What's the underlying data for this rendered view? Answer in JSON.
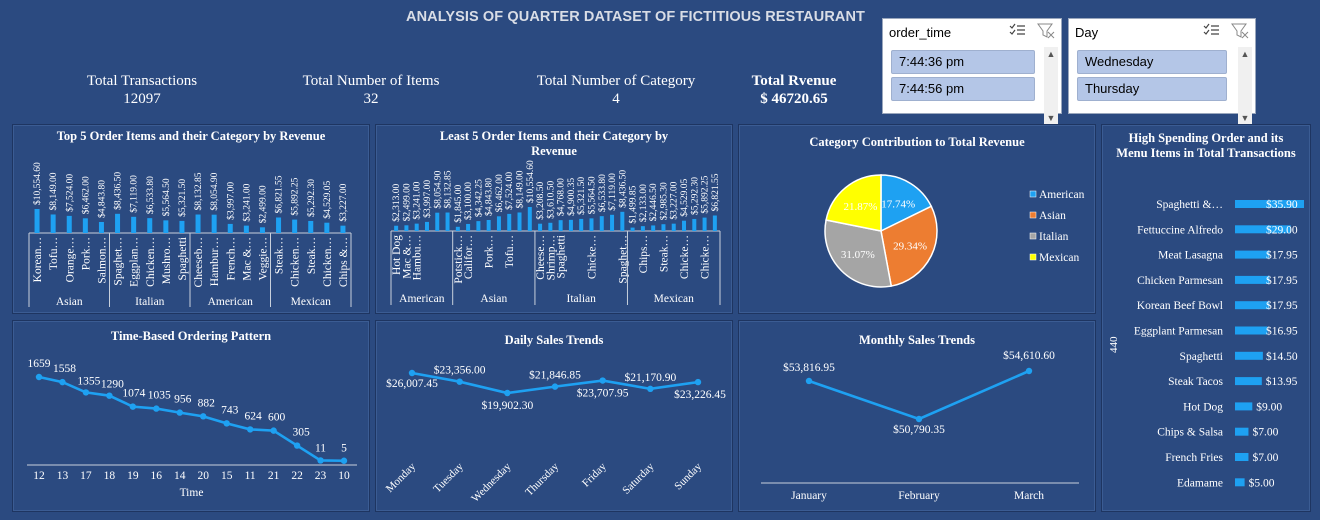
{
  "title": "ANALYSIS OF QUARTER DATASET OF FICTITIOUS RESTAURANT",
  "kpis": {
    "transactions": {
      "label": "Total Transactions",
      "value": "12097"
    },
    "items": {
      "label": "Total Number of Items",
      "value": "32"
    },
    "categories": {
      "label": "Total Number of Category",
      "value": "4"
    },
    "revenue": {
      "label": "Total Rvenue",
      "value": "$ 46720.65"
    }
  },
  "slicers": {
    "order_time": {
      "header": "order_time",
      "items": [
        "7:44:36 pm",
        "7:44:56 pm"
      ]
    },
    "day": {
      "header": "Day",
      "items": [
        "Wednesday",
        "Thursday"
      ]
    }
  },
  "panels": {
    "top5": "Top 5 Order Items and their Category by Revenue",
    "least5": "Least 5 Order Items and their Category by Revenue",
    "category_pie": "Category Contribution to Total Revenue",
    "high_spending": "High Spending Order and its Menu Items in Total Transactions",
    "time_pattern": "Time-Based Ordering Pattern",
    "daily": "Daily Sales Trends",
    "monthly": "Monthly Sales Trends"
  },
  "colors": {
    "bar": "#1ea1f2",
    "line": "#1ea1f2",
    "american": "#1ea1f2",
    "asian": "#ed7d31",
    "italian": "#a5a5a5",
    "mexican": "#ffff00"
  },
  "chart_data": [
    {
      "id": "top5",
      "type": "bar",
      "groups": [
        {
          "name": "Asian",
          "items": [
            {
              "label": "Korean…",
              "value": 10554.6,
              "text": "$10,554.60"
            },
            {
              "label": "Tofu…",
              "value": 8149.0,
              "text": "$8,149.00"
            },
            {
              "label": "Orange…",
              "value": 7524.0,
              "text": "$7,524.00"
            },
            {
              "label": "Pork…",
              "value": 6462.0,
              "text": "$6,462.00"
            },
            {
              "label": "Salmon…",
              "value": 4843.8,
              "text": "$4,843.80"
            }
          ]
        },
        {
          "name": "Italian",
          "items": [
            {
              "label": "Spaghet…",
              "value": 8436.5,
              "text": "$8,436.50"
            },
            {
              "label": "Eggplan…",
              "value": 7119.0,
              "text": "$7,119.00"
            },
            {
              "label": "Chicken…",
              "value": 6533.8,
              "text": "$6,533.80"
            },
            {
              "label": "Mushro…",
              "value": 5564.5,
              "text": "$5,564.50"
            },
            {
              "label": "Spaghetti",
              "value": 5321.5,
              "text": "$5,321.50"
            }
          ]
        },
        {
          "name": "American",
          "items": [
            {
              "label": "Cheeseb…",
              "value": 8132.85,
              "text": "$8,132.85"
            },
            {
              "label": "Hambur…",
              "value": 8054.9,
              "text": "$8,054.90"
            },
            {
              "label": "French…",
              "value": 3997.0,
              "text": "$3,997.00"
            },
            {
              "label": "Mac &…",
              "value": 3241.0,
              "text": "$3,241.00"
            },
            {
              "label": "Veggie…",
              "value": 2499.0,
              "text": "$2,499.00"
            }
          ]
        },
        {
          "name": "Mexican",
          "items": [
            {
              "label": "Steak…",
              "value": 6821.55,
              "text": "$6,821.55"
            },
            {
              "label": "Chicken…",
              "value": 5892.25,
              "text": "$5,892.25"
            },
            {
              "label": "Steak…",
              "value": 5292.3,
              "text": "$5,292.30"
            },
            {
              "label": "Chicken…",
              "value": 4529.05,
              "text": "$4,529.05"
            },
            {
              "label": "Chips &…",
              "value": 3227.0,
              "text": "$3,227.00"
            }
          ]
        }
      ]
    },
    {
      "id": "least5",
      "type": "bar",
      "groups": [
        {
          "name": "American",
          "items": [
            {
              "label": "Hot Dog",
              "value": 2313.0,
              "text": "$2,313.00"
            },
            {
              "label": "Mac &…",
              "value": 2499.0,
              "text": "$2,499.00"
            },
            {
              "label": "Hambu…",
              "value": 3241.0,
              "text": "$3,241.00"
            },
            {
              "label": "",
              "value": 3997.0,
              "text": "$3,997.00"
            },
            {
              "label": "",
              "value": 8054.9,
              "text": "$8,054.90"
            },
            {
              "label": "",
              "value": 8132.85,
              "text": "$8,132.85"
            }
          ]
        },
        {
          "name": "Asian",
          "items": [
            {
              "label": "Potstick…",
              "value": 1845.0,
              "text": "$1,845.00"
            },
            {
              "label": "Califor…",
              "value": 3100.0,
              "text": "$3,100.00"
            },
            {
              "label": "",
              "value": 4342.25,
              "text": "$4,342.25"
            },
            {
              "label": "Pork…",
              "value": 4843.8,
              "text": "$4,843.80"
            },
            {
              "label": "",
              "value": 6462.0,
              "text": "$6,462.00"
            },
            {
              "label": "Tofu…",
              "value": 7524.0,
              "text": "$7,524.00"
            },
            {
              "label": "",
              "value": 8149.0,
              "text": "$8,149.00"
            },
            {
              "label": "",
              "value": 10554.6,
              "text": "$10,554.60"
            }
          ]
        },
        {
          "name": "Italian",
          "items": [
            {
              "label": "Cheese…",
              "value": 3208.5,
              "text": "$3,208.50"
            },
            {
              "label": "Shrimp…",
              "value": 3610.5,
              "text": "$3,610.50"
            },
            {
              "label": "Spaghetti",
              "value": 4768.0,
              "text": "$4,768.00"
            },
            {
              "label": "",
              "value": 4900.35,
              "text": "$4,900.35"
            },
            {
              "label": "",
              "value": 5321.5,
              "text": "$5,321.50"
            },
            {
              "label": "Chicke…",
              "value": 5564.5,
              "text": "$5,564.50"
            },
            {
              "label": "",
              "value": 6533.8,
              "text": "$6,533.80"
            },
            {
              "label": "",
              "value": 7119.0,
              "text": "$7,119.00"
            },
            {
              "label": "Spaghet…",
              "value": 8436.5,
              "text": "$8,436.50"
            }
          ]
        },
        {
          "name": "Mexican",
          "items": [
            {
              "label": "",
              "value": 1499.85,
              "text": "$1,499.85"
            },
            {
              "label": "Chips…",
              "value": 2133.0,
              "text": "$2,133.00"
            },
            {
              "label": "",
              "value": 2446.5,
              "text": "$2,446.50"
            },
            {
              "label": "Steak…",
              "value": 2985.3,
              "text": "$2,985.30"
            },
            {
              "label": "",
              "value": 3227.0,
              "text": "$3,227.00"
            },
            {
              "label": "Chicke…",
              "value": 4529.05,
              "text": "$4,529.05"
            },
            {
              "label": "",
              "value": 5292.3,
              "text": "$5,292.30"
            },
            {
              "label": "Chicke…",
              "value": 5892.25,
              "text": "$5,892.25"
            },
            {
              "label": "",
              "value": 6821.55,
              "text": "$6,821.55"
            }
          ]
        }
      ]
    },
    {
      "id": "category_pie",
      "type": "pie",
      "slices": [
        {
          "name": "American",
          "value": 17.74,
          "text": "17.74%",
          "color": "#1ea1f2"
        },
        {
          "name": "Asian",
          "value": 29.34,
          "text": "29.34%",
          "color": "#ed7d31"
        },
        {
          "name": "Italian",
          "value": 31.07,
          "text": "31.07%",
          "color": "#a5a5a5"
        },
        {
          "name": "Mexican",
          "value": 21.87,
          "text": "21.87%",
          "color": "#ffff00"
        }
      ],
      "legend": "right"
    },
    {
      "id": "high_spending",
      "type": "bar",
      "orientation": "horizontal",
      "axis_label": "440",
      "items": [
        {
          "label": "Spaghetti &…",
          "value": 35.9,
          "text": "$35.90"
        },
        {
          "label": "Fettuccine Alfredo",
          "value": 29.0,
          "text": "$29.00"
        },
        {
          "label": "Meat Lasagna",
          "value": 17.95,
          "text": "$17.95"
        },
        {
          "label": "Chicken Parmesan",
          "value": 17.95,
          "text": "$17.95"
        },
        {
          "label": "Korean Beef Bowl",
          "value": 17.95,
          "text": "$17.95"
        },
        {
          "label": "Eggplant Parmesan",
          "value": 16.95,
          "text": "$16.95"
        },
        {
          "label": "Spaghetti",
          "value": 14.5,
          "text": "$14.50"
        },
        {
          "label": "Steak Tacos",
          "value": 13.95,
          "text": "$13.95"
        },
        {
          "label": "Hot Dog",
          "value": 9.0,
          "text": "$9.00"
        },
        {
          "label": "Chips & Salsa",
          "value": 7.0,
          "text": "$7.00"
        },
        {
          "label": "French Fries",
          "value": 7.0,
          "text": "$7.00"
        },
        {
          "label": "Edamame",
          "value": 5.0,
          "text": "$5.00"
        }
      ]
    },
    {
      "id": "time_pattern",
      "type": "line",
      "categories": [
        "12",
        "13",
        "17",
        "18",
        "19",
        "16",
        "14",
        "20",
        "15",
        "11",
        "21",
        "22",
        "23",
        "10"
      ],
      "values": [
        1659,
        1558,
        1355,
        1290,
        1074,
        1035,
        956,
        882,
        743,
        624,
        600,
        305,
        11,
        5
      ],
      "xlabel": "Time"
    },
    {
      "id": "daily",
      "type": "line",
      "categories": [
        "Monday",
        "Tuesday",
        "Wednesday",
        "Thursday",
        "Friday",
        "Saturday",
        "Sunday"
      ],
      "values": [
        26007.45,
        23356.0,
        19902.3,
        21846.85,
        23707.95,
        21170.9,
        23226.45
      ],
      "labels": [
        "$26,007.45",
        "$23,356.00",
        "$19,902.30",
        "$21,846.85",
        "$23,707.95",
        "$21,170.90",
        "$23,226.45"
      ]
    },
    {
      "id": "monthly",
      "type": "line",
      "categories": [
        "January",
        "February",
        "March"
      ],
      "values": [
        53816.95,
        50790.35,
        54610.6
      ],
      "labels": [
        "$53,816.95",
        "$50,790.35",
        "$54,610.60"
      ]
    }
  ]
}
